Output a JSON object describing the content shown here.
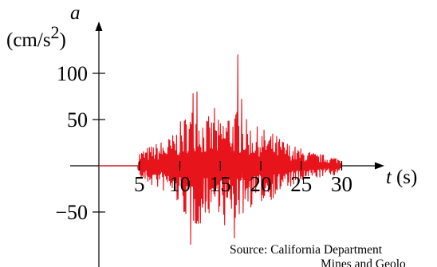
{
  "chart_data": {
    "type": "line",
    "title": "",
    "xlabel_var": "t",
    "xlabel_unit": "(s)",
    "ylabel_var": "a",
    "ylabel_unit_base": "(cm/s",
    "ylabel_unit_exp": "2",
    "ylabel_unit_close": ")",
    "xlim": [
      -15,
      34
    ],
    "ylim": [
      -90,
      150
    ],
    "x_ticks": [
      5,
      10,
      15,
      20,
      25,
      30
    ],
    "x_tick_labels": [
      "5",
      "10",
      "15",
      "20",
      "25",
      "30"
    ],
    "y_ticks": [
      100,
      50,
      -50
    ],
    "y_tick_labels": [
      "100",
      "50",
      "−50"
    ],
    "series_color": "#e8141c",
    "series": [
      {
        "x_start": 0,
        "x_end": 30,
        "onset": 4.8,
        "envelope": [
          [
            0,
            0
          ],
          [
            4.8,
            0
          ],
          [
            5,
            15
          ],
          [
            7,
            22
          ],
          [
            9,
            30
          ],
          [
            11,
            55
          ],
          [
            12,
            62
          ],
          [
            13,
            50
          ],
          [
            15,
            45
          ],
          [
            16,
            58
          ],
          [
            17,
            55
          ],
          [
            19,
            40
          ],
          [
            21,
            35
          ],
          [
            24,
            20
          ],
          [
            27,
            12
          ],
          [
            30,
            8
          ]
        ],
        "peaks": [
          {
            "x": 17.2,
            "y": 120
          },
          {
            "x": 11.6,
            "y": 78
          },
          {
            "x": 12.1,
            "y": 80
          },
          {
            "x": 17.6,
            "y": 72
          },
          {
            "x": 11.4,
            "y": -85
          },
          {
            "x": 16.7,
            "y": -78
          },
          {
            "x": 12.6,
            "y": -62
          },
          {
            "x": 15.6,
            "y": -64
          },
          {
            "x": 14.3,
            "y": 62
          }
        ]
      }
    ]
  },
  "source": {
    "line1": "Source: California Department",
    "line2": "Mines and Geolo"
  }
}
